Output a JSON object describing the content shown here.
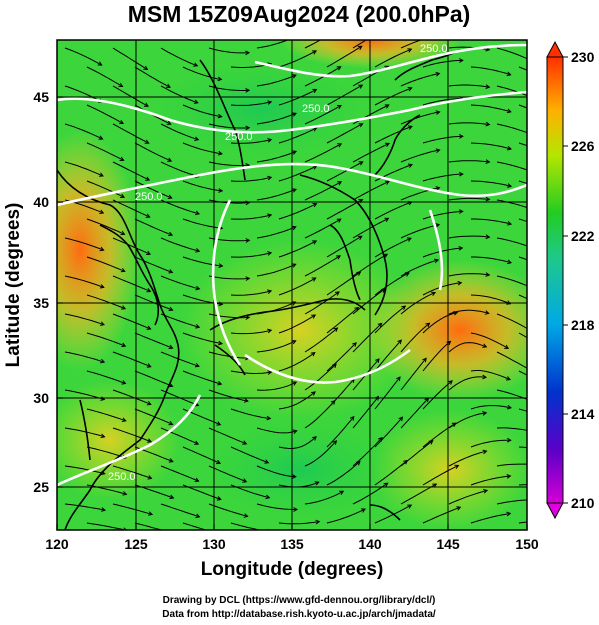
{
  "title": "MSM 15Z09Aug2024 (200.0hPa)",
  "xaxis": {
    "label": "Longitude (degrees)",
    "ticks": [
      "120",
      "125",
      "130",
      "135",
      "140",
      "145",
      "150"
    ]
  },
  "yaxis": {
    "label": "Latitude  (degrees)",
    "ticks": [
      "25",
      "30",
      "35",
      "40",
      "45"
    ]
  },
  "colorbar": {
    "ticks": [
      "230",
      "226",
      "222",
      "218",
      "214",
      "210"
    ]
  },
  "contour_labels": [
    "250.0",
    "250.0",
    "250.0",
    "250.0",
    "250.0"
  ],
  "credits": {
    "line1": "Drawing by DCL (https://www.gfd-dennou.org/library/dcl/)",
    "line2": "Data from http://database.rish.kyoto-u.ac.jp/arch/jmadata/"
  },
  "colors": {
    "field_low": "#d400d4",
    "field_mid": "#22d23a",
    "field_high": "#ff2a00",
    "streamline": "#000000",
    "contour": "#ffffff"
  }
}
